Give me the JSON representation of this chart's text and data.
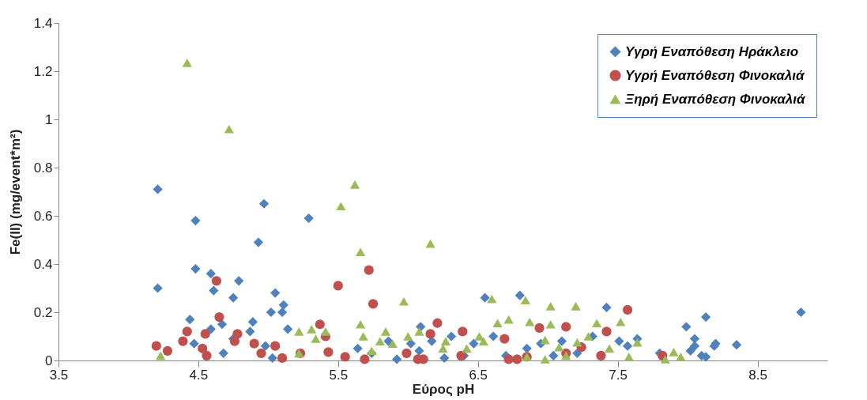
{
  "chart_data": {
    "type": "scatter",
    "xlabel": "Εύρος pH",
    "ylabel": "Fe(II) (mg/event*m²)",
    "xlim": [
      3.5,
      9.0
    ],
    "xticks": [
      3.5,
      4.5,
      5.5,
      6.5,
      7.5,
      8.5
    ],
    "ylim": [
      0,
      1.4
    ],
    "yticks": [
      0,
      0.2,
      0.4,
      0.6,
      0.8,
      1,
      1.2,
      1.4
    ],
    "grid": false,
    "legend": "top right",
    "series": [
      {
        "name": "Υγρή Εναπόθεση Ηράκλειο",
        "color": "#4f81bd",
        "marker": "diamond",
        "x": [
          4.21,
          4.21,
          4.48,
          4.44,
          4.48,
          4.47,
          4.59,
          4.61,
          4.59,
          4.67,
          4.68,
          4.75,
          4.79,
          4.75,
          4.89,
          4.93,
          4.97,
          4.87,
          4.98,
          5.05,
          5.03,
          5.11,
          5.1,
          5.14,
          5.29,
          5.02,
          5.64,
          5.74,
          5.86,
          5.92,
          6.02,
          6.08,
          6.09,
          6.17,
          6.26,
          6.31,
          6.4,
          6.47,
          6.55,
          6.61,
          6.7,
          6.8,
          6.85,
          6.95,
          7.04,
          7.1,
          7.21,
          7.32,
          7.42,
          7.51,
          7.57,
          7.64,
          7.8,
          7.99,
          8.02,
          8.05,
          8.05,
          8.13,
          8.13,
          8.19,
          8.2,
          8.35,
          8.81,
          8.1
        ],
        "values": [
          0.71,
          0.3,
          0.58,
          0.17,
          0.38,
          0.07,
          0.36,
          0.29,
          0.13,
          0.15,
          0.03,
          0.26,
          0.33,
          0.09,
          0.16,
          0.49,
          0.65,
          0.12,
          0.06,
          0.28,
          0.01,
          0.23,
          0.2,
          0.13,
          0.59,
          0.2,
          0.05,
          0.03,
          0.08,
          0.005,
          0.07,
          0.04,
          0.14,
          0.08,
          0.01,
          0.1,
          0.02,
          0.07,
          0.26,
          0.1,
          0.02,
          0.27,
          0.05,
          0.07,
          0.02,
          0.08,
          0.03,
          0.1,
          0.22,
          0.08,
          0.06,
          0.09,
          0.03,
          0.14,
          0.04,
          0.06,
          0.09,
          0.015,
          0.18,
          0.06,
          0.07,
          0.065,
          0.2,
          0.02
        ]
      },
      {
        "name": "Υγρή Εναπόθεση Φινοκαλιά",
        "color": "#c0504d",
        "marker": "circle",
        "x": [
          4.2,
          4.28,
          4.39,
          4.42,
          4.53,
          4.56,
          4.55,
          4.63,
          4.65,
          4.76,
          4.78,
          4.9,
          4.95,
          5.05,
          5.1,
          5.23,
          5.37,
          5.41,
          5.43,
          5.5,
          5.55,
          5.69,
          5.72,
          5.75,
          5.99,
          6.07,
          6.11,
          6.21,
          6.16,
          6.38,
          6.39,
          6.69,
          6.78,
          6.94,
          7.13,
          7.13,
          7.24,
          7.38,
          7.42,
          7.57,
          7.82,
          6.72,
          6.85
        ],
        "values": [
          0.06,
          0.04,
          0.08,
          0.12,
          0.05,
          0.02,
          0.11,
          0.33,
          0.18,
          0.08,
          0.11,
          0.07,
          0.03,
          0.06,
          0.01,
          0.03,
          0.15,
          0.1,
          0.035,
          0.31,
          0.015,
          0.005,
          0.375,
          0.235,
          0.03,
          0.005,
          0.005,
          0.155,
          0.11,
          0.02,
          0.12,
          0.09,
          0.005,
          0.135,
          0.14,
          0.03,
          0.055,
          0.02,
          0.12,
          0.21,
          0.02,
          0.005,
          0.015
        ]
      },
      {
        "name": "Ξηρή Εναπόθεση Φινοκαλιά",
        "color": "#9bbb59",
        "marker": "triangle",
        "x": [
          4.23,
          4.42,
          4.72,
          5.22,
          5.22,
          5.31,
          5.34,
          5.41,
          5.52,
          5.62,
          5.66,
          5.66,
          5.68,
          5.74,
          5.8,
          5.84,
          5.89,
          6.16,
          5.97,
          6.0,
          6.08,
          6.25,
          6.27,
          6.42,
          6.51,
          6.54,
          6.6,
          6.64,
          6.72,
          6.84,
          6.87,
          6.98,
          7.02,
          7.02,
          7.08,
          7.2,
          7.21,
          7.29,
          7.35,
          7.44,
          7.52,
          7.58,
          7.64,
          7.84,
          7.9,
          7.95,
          6.85,
          6.98,
          7.13
        ],
        "values": [
          0.02,
          1.235,
          0.96,
          0.03,
          0.12,
          0.13,
          0.09,
          0.12,
          0.64,
          0.73,
          0.45,
          0.15,
          0.1,
          0.04,
          0.08,
          0.12,
          0.07,
          0.485,
          0.245,
          0.1,
          0.12,
          0.05,
          0.08,
          0.05,
          0.1,
          0.08,
          0.255,
          0.155,
          0.17,
          0.25,
          0.16,
          0.085,
          0.225,
          0.15,
          0.055,
          0.225,
          0.075,
          0.1,
          0.155,
          0.05,
          0.16,
          0.015,
          0.075,
          0.005,
          0.035,
          0.015,
          0.015,
          0.005,
          0.02
        ]
      }
    ]
  }
}
